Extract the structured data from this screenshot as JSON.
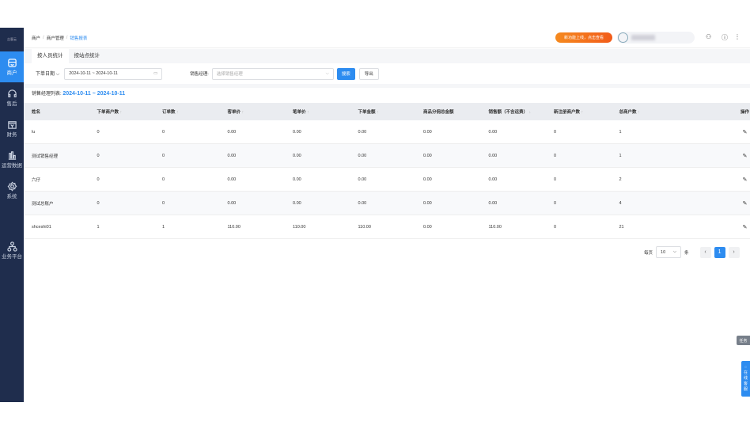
{
  "sidebar": {
    "logo": "吉客云",
    "items": [
      {
        "label": "商户",
        "icon": "store-icon",
        "active": true
      },
      {
        "label": "售后",
        "icon": "headset-icon"
      },
      {
        "label": "财务",
        "icon": "finance-icon"
      },
      {
        "label": "运营数据",
        "icon": "bar-chart-icon"
      },
      {
        "label": "系统",
        "icon": "gear-icon"
      }
    ],
    "bottom": {
      "label": "业务平台",
      "icon": "org-icon"
    }
  },
  "header": {
    "breadcrumb": [
      "商户",
      "商户管理",
      "销售报表"
    ],
    "promo": "新功能上线，点击查看"
  },
  "tabs": [
    {
      "label": "按人员统计",
      "active": true
    },
    {
      "label": "按站点统计"
    }
  ],
  "filters": {
    "date_type": "下单日期",
    "date_range": "2024-10-11 ~ 2024-10-11",
    "manager_label": "销售经理:",
    "manager_placeholder": "选择销售经理",
    "search": "搜索",
    "export": "导出"
  },
  "list": {
    "title": "销售经理列表:",
    "range": "2024-10-11 ~ 2024-10-11"
  },
  "table": {
    "columns": [
      {
        "label": "姓名",
        "sort": ""
      },
      {
        "label": "下单商户数",
        "sort": "↑"
      },
      {
        "label": "订单数",
        "sort": "↑"
      },
      {
        "label": "客单价",
        "sort": "↑"
      },
      {
        "label": "笔单价",
        "sort": "↑"
      },
      {
        "label": "下单金额",
        "sort": "↑"
      },
      {
        "label": "商品分佣总金额",
        "sort": ""
      },
      {
        "label": "销售额（不含运费）",
        "sort": "↓"
      },
      {
        "label": "新注册商户数",
        "sort": "↑"
      },
      {
        "label": "总商户数",
        "sort": "↑"
      },
      {
        "label": "操作",
        "sort": ""
      }
    ],
    "rows": [
      [
        "lu",
        "0",
        "0",
        "0.00",
        "0.00",
        "0.00",
        "0.00",
        "0.00",
        "0",
        "1"
      ],
      [
        "测试销售经理",
        "0",
        "0",
        "0.00",
        "0.00",
        "0.00",
        "0.00",
        "0.00",
        "0",
        "1"
      ],
      [
        "六仔",
        "0",
        "0",
        "0.00",
        "0.00",
        "0.00",
        "0.00",
        "0.00",
        "0",
        "2"
      ],
      [
        "测试总账户",
        "0",
        "0",
        "0.00",
        "0.00",
        "0.00",
        "0.00",
        "0.00",
        "0",
        "4"
      ],
      [
        "shceshi01",
        "1",
        "1",
        "110.00",
        "110.00",
        "110.00",
        "0.00",
        "110.00",
        "0",
        "21"
      ]
    ]
  },
  "pager": {
    "per_page_label": "每页",
    "per_page": "10",
    "unit": "条",
    "prev": "‹",
    "page": "1",
    "next": "›"
  },
  "float": {
    "task": "任务",
    "service": [
      "在",
      "线",
      "客",
      "服"
    ]
  },
  "colors": {
    "sidebar": "#1f2d4d",
    "accent": "#2d8cf0",
    "promo": "#f25c1a"
  }
}
